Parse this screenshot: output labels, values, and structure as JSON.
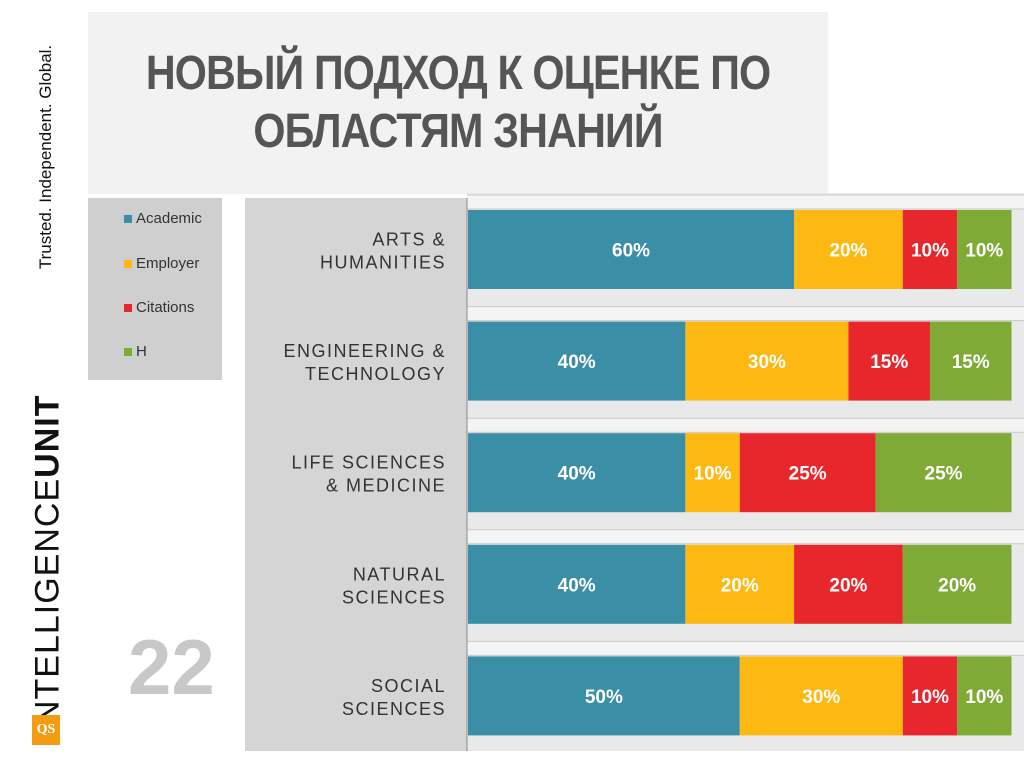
{
  "tagline": "Trusted. Independent. Global.",
  "brand": {
    "thin": "INTELLIGENCE",
    "bold": "UNIT",
    "logo": "QS"
  },
  "title": {
    "line1": "НОВЫЙ ПОДХОД К ОЦЕНКЕ ПО",
    "line2": "ОБЛАСТЯМ ЗНАНИЙ"
  },
  "page_number": "22",
  "colors": {
    "academic": "#3a8fa7",
    "employer": "#fdb812",
    "citations": "#e8272d",
    "h": "#7faa36"
  },
  "chart_data": {
    "type": "bar",
    "orientation": "horizontal",
    "stacked": true,
    "categories": [
      [
        "ARTS &",
        "HUMANITIES"
      ],
      [
        "ENGINEERING &",
        "TECHNOLOGY"
      ],
      [
        "LIFE SCIENCES",
        "& MEDICINE"
      ],
      [
        "NATURAL",
        "SCIENCES"
      ],
      [
        "SOCIAL",
        "SCIENCES"
      ]
    ],
    "series": [
      {
        "name": "Academic",
        "color": "#3a8fa7",
        "values": [
          60,
          40,
          40,
          40,
          50
        ]
      },
      {
        "name": "Employer",
        "color": "#fdb812",
        "values": [
          20,
          30,
          10,
          20,
          30
        ]
      },
      {
        "name": "Citations",
        "color": "#e8272d",
        "values": [
          10,
          15,
          25,
          20,
          10
        ]
      },
      {
        "name": "H",
        "color": "#7faa36",
        "values": [
          10,
          15,
          25,
          20,
          10
        ]
      }
    ],
    "unit": "%",
    "xlim": [
      0,
      100
    ],
    "legend_position": "left"
  }
}
